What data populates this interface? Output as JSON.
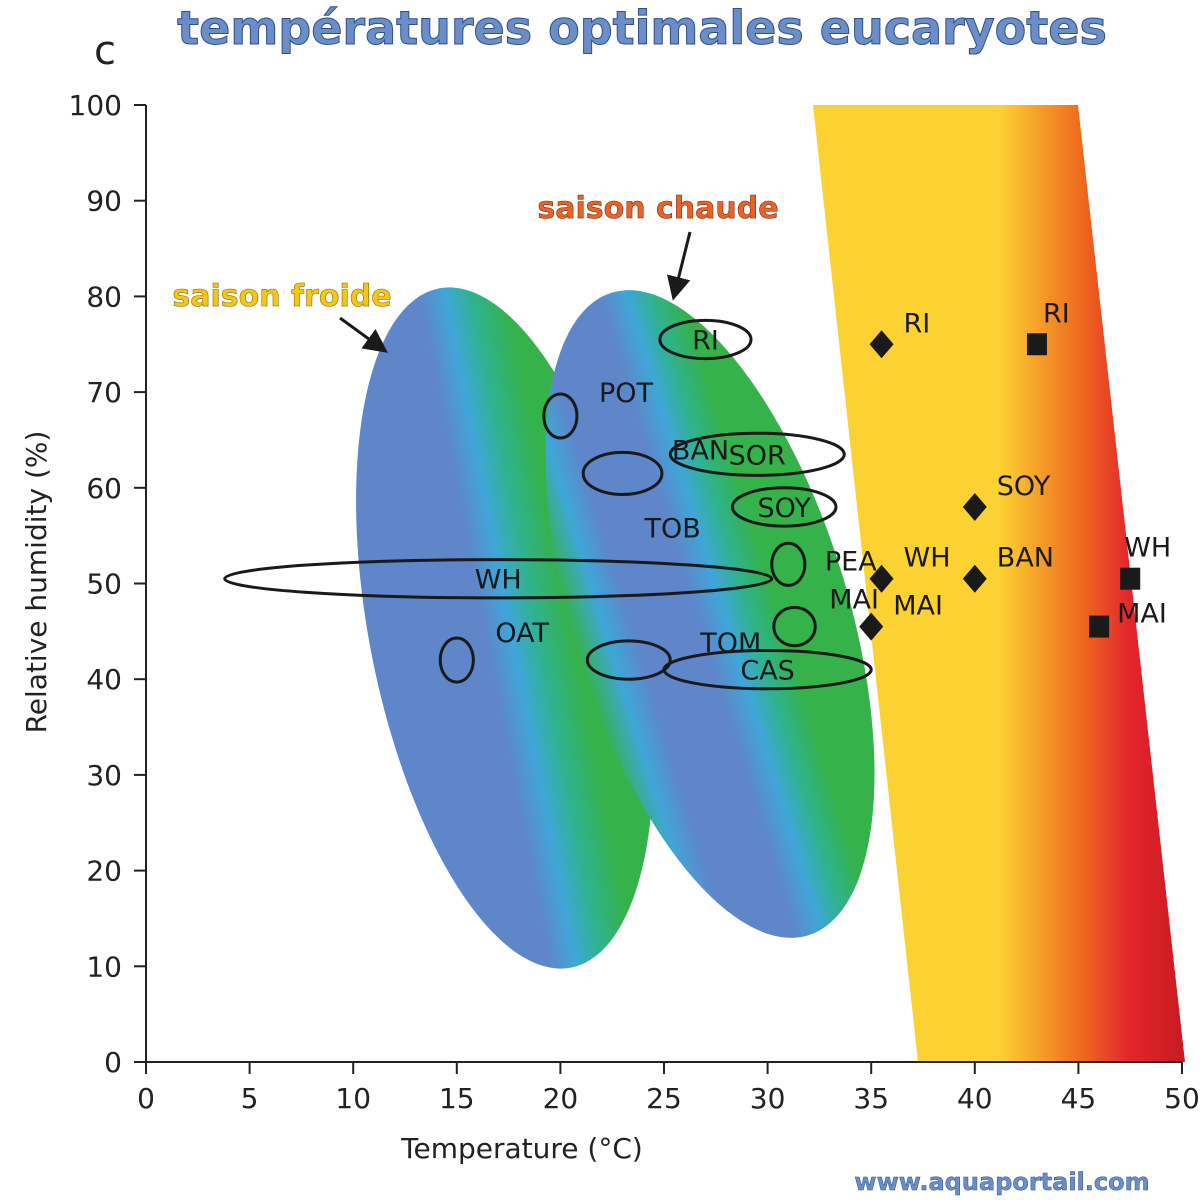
{
  "header": {
    "title": "températures optimales eucaryotes",
    "panel_letter": "c"
  },
  "footer": {
    "watermark": "www.aquaportail.com"
  },
  "colors": {
    "title": "#6b8ec9",
    "cold_label": "#f5c518",
    "warm_label": "#e8632a",
    "blue": "#5f86c8",
    "green": "#35b24a",
    "yellow": "#fcd232",
    "red": "#e3262b",
    "marker": "#1a1a1a"
  },
  "chart_data": {
    "type": "scatter",
    "xlabel": "Temperature (°C)",
    "ylabel": "Relative humidity (%)",
    "xlim": [
      0,
      50
    ],
    "ylim": [
      0,
      100
    ],
    "xticks": [
      0,
      5,
      10,
      15,
      20,
      25,
      30,
      35,
      40,
      45,
      50
    ],
    "yticks": [
      0,
      10,
      20,
      30,
      40,
      50,
      60,
      70,
      80,
      90,
      100
    ],
    "annotations": [
      {
        "text": "saison froide",
        "color": "cold"
      },
      {
        "text": "saison chaude",
        "color": "warm"
      }
    ],
    "optimal_ranges": [
      {
        "label": "RI",
        "x": 27,
        "y": 75.5,
        "rx": 2.2,
        "ry": 2
      },
      {
        "label": "POT",
        "x": 20,
        "y": 67.5,
        "rx": 0.8,
        "ry": 2.3
      },
      {
        "label": "BAN",
        "x": 23,
        "y": 61.5,
        "rx": 1.9,
        "ry": 2.2
      },
      {
        "label": "TOB",
        "x": 23,
        "y": 61.5,
        "rx": 0,
        "ry": 0
      },
      {
        "label": "SOR",
        "x": 29.5,
        "y": 63.5,
        "rx": 4.2,
        "ry": 2.2
      },
      {
        "label": "SOY",
        "x": 30.8,
        "y": 58,
        "rx": 2.5,
        "ry": 2
      },
      {
        "label": "PEA",
        "x": 31,
        "y": 52,
        "rx": 0.8,
        "ry": 2.2
      },
      {
        "label": "WH",
        "x": 17,
        "y": 50.5,
        "rx": 13.2,
        "ry": 2
      },
      {
        "label": "MAI",
        "x": 31.3,
        "y": 45.5,
        "rx": 1,
        "ry": 2
      },
      {
        "label": "OAT",
        "x": 15,
        "y": 42,
        "rx": 0.8,
        "ry": 2.3
      },
      {
        "label": "TOM",
        "x": 23.3,
        "y": 42,
        "rx": 2,
        "ry": 2
      },
      {
        "label": "CAS",
        "x": 30,
        "y": 41,
        "rx": 5,
        "ry": 2
      }
    ],
    "series": [
      {
        "marker": "diamond",
        "points": [
          {
            "label": "RI",
            "x": 35.5,
            "y": 75
          },
          {
            "label": "SOY",
            "x": 40,
            "y": 58
          },
          {
            "label": "WH",
            "x": 35.5,
            "y": 50.5
          },
          {
            "label": "BAN",
            "x": 40,
            "y": 50.5
          },
          {
            "label": "MAI",
            "x": 35,
            "y": 45.5
          }
        ]
      },
      {
        "marker": "square",
        "points": [
          {
            "label": "RI",
            "x": 43,
            "y": 75
          },
          {
            "label": "WH",
            "x": 47.5,
            "y": 50.5
          },
          {
            "label": "MAI",
            "x": 46,
            "y": 45.5
          }
        ]
      }
    ]
  }
}
